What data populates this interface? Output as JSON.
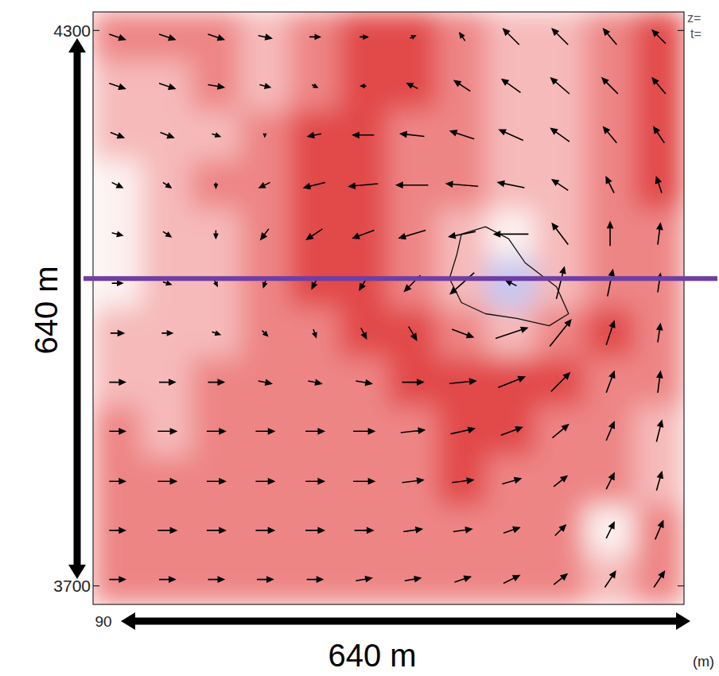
{
  "chart_data": {
    "type": "vector_field",
    "x_label": "(m)",
    "annotations": {
      "z": "z=",
      "t": "t=",
      "span_y": "640 m",
      "span_x": "640 m",
      "x_start": "90"
    },
    "xlim": [
      900,
      1540
    ],
    "ylim": [
      3680,
      4320
    ],
    "yticks": [
      3700,
      4300
    ],
    "x": [
      926,
      980,
      1033,
      1086,
      1140,
      1193,
      1246,
      1300,
      1353,
      1406,
      1460,
      1513
    ],
    "y": [
      4293,
      4240,
      4187,
      4133,
      4080,
      4027,
      3973,
      3920,
      3867,
      3813,
      3760,
      3707
    ],
    "u": [
      [
        6,
        6,
        6,
        5,
        4,
        3,
        2,
        -2,
        -6,
        -6,
        -5,
        -5
      ],
      [
        6,
        6,
        6,
        4,
        2,
        -2,
        -4,
        -6,
        -7,
        -7,
        -6,
        -5
      ],
      [
        5,
        5,
        3,
        0,
        -5,
        -8,
        -9,
        -9,
        -9,
        -7,
        -5,
        -4
      ],
      [
        4,
        3,
        0,
        -4,
        -8,
        -11,
        -12,
        -12,
        -10,
        -6,
        -3,
        -2
      ],
      [
        4,
        3,
        0,
        -3,
        -6,
        -8,
        -10,
        -10,
        -13,
        -6,
        0,
        1
      ],
      [
        4,
        3,
        1,
        -1,
        -2,
        -3,
        -6,
        -9,
        -4,
        3,
        2,
        1
      ],
      [
        5,
        4,
        3,
        2,
        1,
        2,
        3,
        8,
        12,
        8,
        3,
        1
      ],
      [
        6,
        6,
        6,
        5,
        5,
        6,
        8,
        10,
        10,
        7,
        3,
        1
      ],
      [
        6,
        7,
        7,
        7,
        7,
        8,
        9,
        9,
        8,
        6,
        3,
        2
      ],
      [
        6,
        7,
        7,
        7,
        7,
        8,
        8,
        8,
        7,
        5,
        3,
        2
      ],
      [
        6,
        7,
        7,
        7,
        7,
        7,
        7,
        7,
        6,
        4,
        3,
        3
      ],
      [
        6,
        6,
        6,
        6,
        6,
        6,
        6,
        6,
        6,
        5,
        4,
        4
      ]
    ],
    "v": [
      [
        -2,
        -2,
        -2,
        -1,
        0,
        0,
        1,
        3,
        6,
        6,
        6,
        5
      ],
      [
        -2,
        -2,
        -1,
        -1,
        -1,
        0,
        2,
        4,
        5,
        6,
        6,
        6
      ],
      [
        -2,
        -2,
        -1,
        -1,
        -1,
        0,
        1,
        3,
        4,
        5,
        6,
        6
      ],
      [
        -2,
        -2,
        -2,
        -2,
        -2,
        -1,
        0,
        1,
        2,
        4,
        6,
        6
      ],
      [
        -1,
        -2,
        -3,
        -4,
        -4,
        -3,
        -3,
        -2,
        0,
        8,
        9,
        8
      ],
      [
        0,
        -1,
        -2,
        -3,
        -4,
        -5,
        -6,
        -8,
        2,
        12,
        10,
        7
      ],
      [
        0,
        0,
        -1,
        -2,
        -3,
        -4,
        -5,
        -3,
        4,
        10,
        9,
        7
      ],
      [
        0,
        0,
        0,
        -1,
        -1,
        -1,
        0,
        1,
        4,
        7,
        8,
        8
      ],
      [
        0,
        0,
        0,
        0,
        0,
        0,
        1,
        2,
        3,
        5,
        7,
        8
      ],
      [
        0,
        0,
        0,
        0,
        0,
        0,
        1,
        1,
        2,
        4,
        6,
        7
      ],
      [
        0,
        0,
        0,
        0,
        0,
        0,
        1,
        1,
        2,
        4,
        6,
        7
      ],
      [
        0,
        0,
        0,
        0,
        0,
        1,
        1,
        2,
        3,
        4,
        6,
        6
      ]
    ],
    "cells": [
      [
        2,
        2,
        2,
        1,
        2,
        3,
        3,
        2,
        1,
        1,
        2,
        3
      ],
      [
        1,
        1,
        2,
        1,
        2,
        3,
        3,
        2,
        1,
        1,
        2,
        3
      ],
      [
        1,
        1,
        1,
        2,
        3,
        3,
        2,
        2,
        1,
        1,
        2,
        3
      ],
      [
        0,
        1,
        2,
        2,
        3,
        3,
        2,
        2,
        1,
        1,
        2,
        3
      ],
      [
        0,
        1,
        1,
        2,
        3,
        3,
        2,
        1,
        0,
        1,
        2,
        2
      ],
      [
        0,
        1,
        1,
        2,
        3,
        3,
        2,
        1,
        -1,
        1,
        2,
        2
      ],
      [
        1,
        1,
        1,
        2,
        2,
        3,
        3,
        2,
        1,
        2,
        3,
        2
      ],
      [
        1,
        1,
        2,
        2,
        2,
        2,
        3,
        3,
        3,
        3,
        2,
        2
      ],
      [
        2,
        1,
        2,
        2,
        2,
        2,
        2,
        3,
        3,
        2,
        2,
        1
      ],
      [
        2,
        2,
        2,
        2,
        2,
        2,
        2,
        3,
        2,
        2,
        2,
        1
      ],
      [
        2,
        2,
        2,
        2,
        2,
        2,
        2,
        2,
        2,
        2,
        0,
        2
      ],
      [
        2,
        2,
        2,
        2,
        2,
        2,
        2,
        2,
        2,
        2,
        1,
        2
      ]
    ],
    "clim": [
      -1,
      4
    ],
    "contour": {
      "x": [
        1299,
        1325,
        1350,
        1368,
        1402,
        1415,
        1394,
        1359,
        1325,
        1299,
        1286,
        1294
      ],
      "y": [
        4080,
        4088,
        4075,
        4049,
        4023,
        3994,
        3981,
        3989,
        3994,
        4006,
        4032,
        4058
      ]
    },
    "cross_section": {
      "y": 4032,
      "color": "#6e3ea3"
    }
  }
}
